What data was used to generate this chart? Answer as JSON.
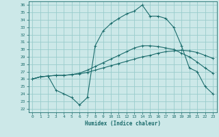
{
  "xlabel": "Humidex (Indice chaleur)",
  "bg_color": "#cce8e8",
  "grid_color": "#99cccc",
  "line_color": "#1a6b6b",
  "xlim": [
    -0.5,
    23.5
  ],
  "ylim": [
    21.5,
    36.5
  ],
  "xticks": [
    0,
    1,
    2,
    3,
    4,
    5,
    6,
    7,
    8,
    9,
    10,
    11,
    12,
    13,
    14,
    15,
    16,
    17,
    18,
    19,
    20,
    21,
    22,
    23
  ],
  "yticks": [
    22,
    23,
    24,
    25,
    26,
    27,
    28,
    29,
    30,
    31,
    32,
    33,
    34,
    35,
    36
  ],
  "line1_x": [
    0,
    1,
    2,
    3,
    4,
    5,
    6,
    7,
    8,
    9,
    10,
    11,
    12,
    13,
    14,
    15,
    16,
    17,
    18,
    19,
    20,
    21,
    22,
    23
  ],
  "line1_y": [
    26.0,
    26.3,
    26.4,
    26.5,
    26.5,
    26.6,
    26.7,
    26.9,
    27.2,
    27.5,
    27.8,
    28.1,
    28.4,
    28.7,
    29.0,
    29.2,
    29.5,
    29.7,
    29.8,
    29.9,
    29.8,
    29.6,
    29.2,
    28.8
  ],
  "line2_x": [
    0,
    1,
    2,
    3,
    4,
    5,
    6,
    7,
    8,
    9,
    10,
    11,
    12,
    13,
    14,
    15,
    16,
    17,
    18,
    19,
    20,
    21,
    22,
    23
  ],
  "line2_y": [
    26.0,
    26.3,
    26.4,
    26.5,
    26.5,
    26.6,
    26.8,
    27.2,
    27.7,
    28.2,
    28.7,
    29.2,
    29.7,
    30.2,
    30.5,
    30.5,
    30.4,
    30.2,
    30.0,
    29.5,
    29.0,
    28.3,
    27.5,
    26.8
  ],
  "line3_x": [
    0,
    1,
    2,
    3,
    4,
    5,
    6,
    7,
    8,
    9,
    10,
    11,
    12,
    13,
    14,
    15,
    16,
    17,
    18,
    19,
    20,
    21,
    22,
    23
  ],
  "line3_y": [
    26.0,
    26.3,
    26.4,
    24.5,
    24.0,
    23.5,
    22.5,
    23.5,
    30.5,
    32.5,
    33.5,
    34.2,
    34.8,
    35.2,
    36.0,
    34.5,
    34.5,
    34.2,
    33.0,
    30.5,
    27.5,
    27.0,
    25.0,
    24.0
  ]
}
